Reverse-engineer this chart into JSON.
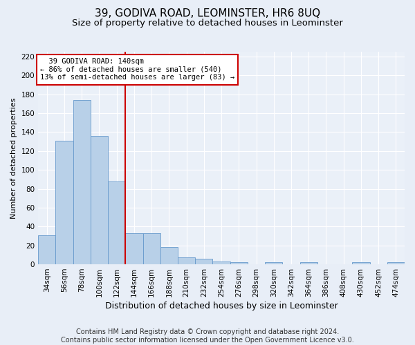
{
  "title": "39, GODIVA ROAD, LEOMINSTER, HR6 8UQ",
  "subtitle": "Size of property relative to detached houses in Leominster",
  "xlabel": "Distribution of detached houses by size in Leominster",
  "ylabel": "Number of detached properties",
  "categories": [
    "34sqm",
    "56sqm",
    "78sqm",
    "100sqm",
    "122sqm",
    "144sqm",
    "166sqm",
    "188sqm",
    "210sqm",
    "232sqm",
    "254sqm",
    "276sqm",
    "298sqm",
    "320sqm",
    "342sqm",
    "364sqm",
    "386sqm",
    "408sqm",
    "430sqm",
    "452sqm",
    "474sqm"
  ],
  "values": [
    31,
    131,
    174,
    136,
    88,
    33,
    33,
    18,
    7,
    6,
    3,
    2,
    0,
    2,
    0,
    2,
    0,
    0,
    2,
    0,
    2
  ],
  "bar_color": "#b8d0e8",
  "bar_edge_color": "#6699cc",
  "annotation_line1": "  39 GODIVA ROAD: 140sqm",
  "annotation_line2": "← 86% of detached houses are smaller (540)",
  "annotation_line3": "13% of semi-detached houses are larger (83) →",
  "annotation_box_color": "#ffffff",
  "annotation_box_edge": "#cc0000",
  "vline_color": "#cc0000",
  "vline_x": 4.5,
  "ylim": [
    0,
    225
  ],
  "yticks": [
    0,
    20,
    40,
    60,
    80,
    100,
    120,
    140,
    160,
    180,
    200,
    220
  ],
  "footer_line1": "Contains HM Land Registry data © Crown copyright and database right 2024.",
  "footer_line2": "Contains public sector information licensed under the Open Government Licence v3.0.",
  "bg_color": "#e8eef7",
  "plot_bg_color": "#eaf0f8",
  "title_fontsize": 11,
  "subtitle_fontsize": 9.5,
  "ylabel_fontsize": 8,
  "xlabel_fontsize": 9,
  "tick_fontsize": 7.5,
  "annotation_fontsize": 7.5,
  "footer_fontsize": 7
}
